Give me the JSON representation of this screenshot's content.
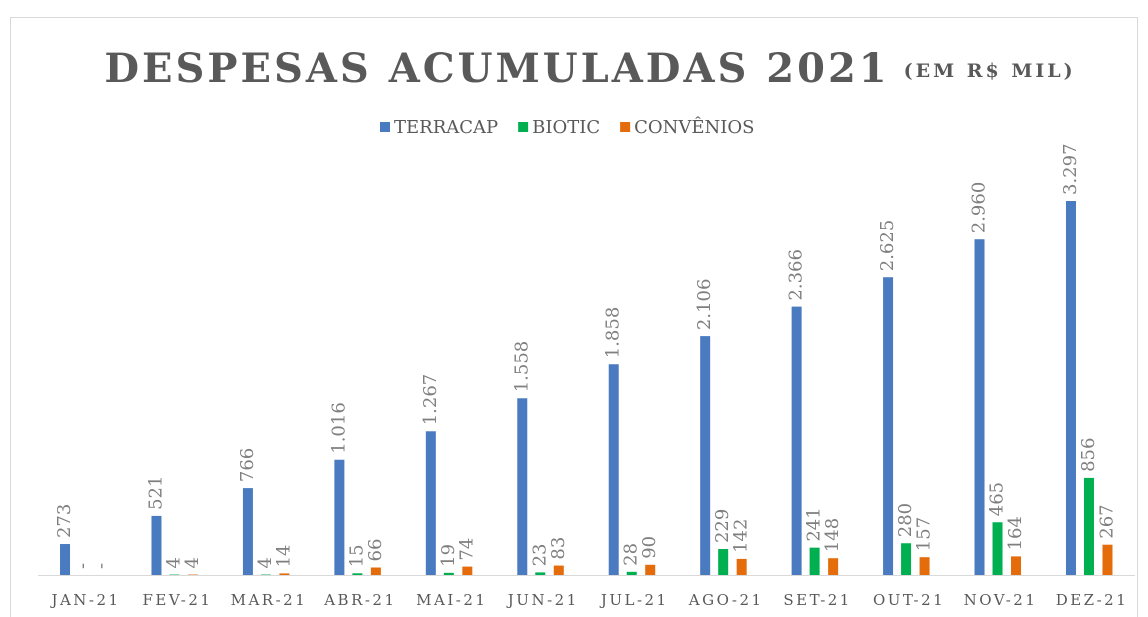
{
  "chart_data": {
    "type": "bar",
    "title": "DESPESAS ACUMULADAS 2021",
    "subtitle": "(EM R$ MIL)",
    "categories": [
      "JAN-21",
      "FEV-21",
      "MAR-21",
      "ABR-21",
      "MAI-21",
      "JUN-21",
      "JUL-21",
      "AGO-21",
      "SET-21",
      "OUT-21",
      "NOV-21",
      "DEZ-21"
    ],
    "series": [
      {
        "name": "TERRACAP",
        "color": "#4a7abf",
        "values": [
          273,
          521,
          766,
          1016,
          1267,
          1558,
          1858,
          2106,
          2366,
          2625,
          2960,
          3297
        ],
        "value_labels": [
          "273",
          "521",
          "766",
          "1.016",
          "1.267",
          "1.558",
          "1.858",
          "2.106",
          "2.366",
          "2.625",
          "2.960",
          "3.297"
        ]
      },
      {
        "name": "BIOTIC",
        "color": "#00b050",
        "values": [
          0,
          4,
          4,
          15,
          19,
          23,
          28,
          229,
          241,
          280,
          465,
          856
        ],
        "value_labels": [
          "-",
          "4",
          "4",
          "15",
          "19",
          "23",
          "28",
          "229",
          "241",
          "280",
          "465",
          "856"
        ]
      },
      {
        "name": "CONVÊNIOS",
        "color": "#e46c0a",
        "values": [
          0,
          4,
          14,
          66,
          74,
          83,
          90,
          142,
          148,
          157,
          164,
          267
        ],
        "value_labels": [
          "-",
          "4",
          "14",
          "66",
          "74",
          "83",
          "90",
          "142",
          "148",
          "157",
          "164",
          "267"
        ]
      }
    ],
    "legend": "top"
  }
}
